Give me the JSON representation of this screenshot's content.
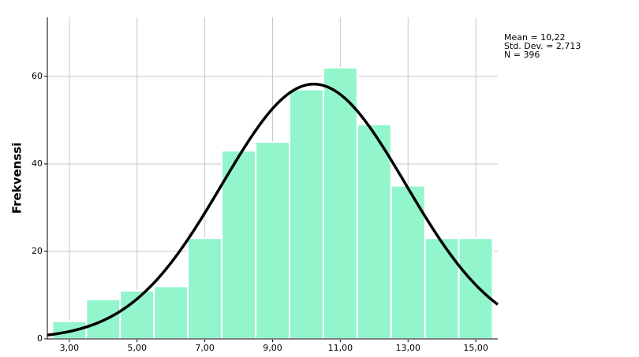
{
  "chart_data": {
    "type": "histogram",
    "ylabel": "Frekvenssi",
    "bins": [
      2.5,
      3.5,
      4.5,
      5.5,
      6.5,
      7.5,
      8.5,
      9.5,
      10.5,
      11.5,
      12.5,
      13.5,
      14.5,
      15.5
    ],
    "values": [
      4,
      9,
      11,
      12,
      23,
      43,
      45,
      57,
      62,
      49,
      35,
      23,
      23
    ],
    "color": "#92f5cb",
    "curve_color": "#000000",
    "xlim": [
      2.35,
      15.65
    ],
    "ylim": [
      0,
      73.5
    ],
    "xticks": [
      {
        "value": 3,
        "label": "3,00"
      },
      {
        "value": 5,
        "label": "5,00"
      },
      {
        "value": 7,
        "label": "7,00"
      },
      {
        "value": 9,
        "label": "9,00"
      },
      {
        "value": 11,
        "label": "11,00"
      },
      {
        "value": 13,
        "label": "13,00"
      },
      {
        "value": 15,
        "label": "15,00"
      }
    ],
    "yticks": [
      0,
      20,
      40,
      60
    ],
    "grid": true,
    "normal_curve": {
      "mean": 10.22,
      "sd": 2.713,
      "n": 396
    },
    "stats_text": [
      "Mean = 10,22",
      "Std. Dev. = 2,713",
      "N = 396"
    ]
  }
}
